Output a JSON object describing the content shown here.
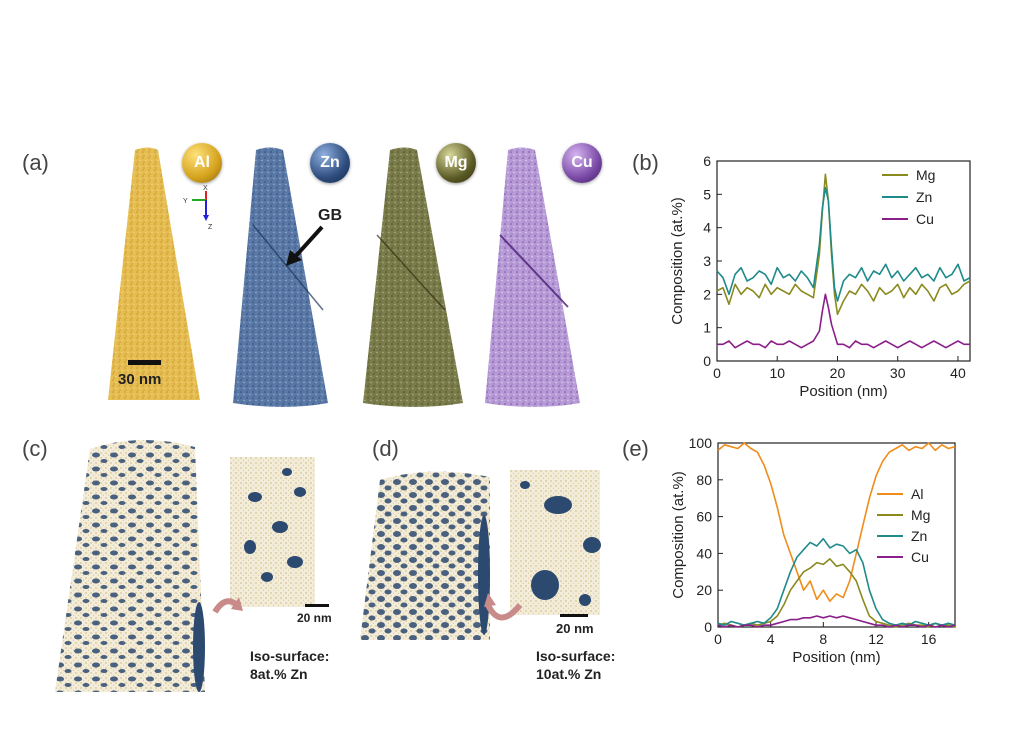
{
  "panels": {
    "a": {
      "label": "(a)",
      "elements": [
        {
          "symbol": "Al",
          "color": "#e2b43e",
          "badge": "#d4a21c"
        },
        {
          "symbol": "Zn",
          "color": "#4f6f9d",
          "badge": "#2e4d7e"
        },
        {
          "symbol": "Mg",
          "color": "#797a47",
          "badge": "#5c5c26"
        },
        {
          "symbol": "Cu",
          "color": "#a083c4",
          "badge": "#7a4aa6"
        }
      ],
      "gb_label": "GB",
      "scale_label": "30 nm",
      "axes": {
        "x": "X",
        "y": "Y",
        "z": "Z"
      }
    },
    "b": {
      "label": "(b)"
    },
    "c": {
      "label": "(c)",
      "scale_label": "20 nm",
      "iso_line1": "Iso-surface:",
      "iso_line2": "8at.% Zn"
    },
    "d": {
      "label": "(d)",
      "scale_label": "20 nm",
      "iso_line1": "Iso-surface:",
      "iso_line2": "10at.% Zn"
    },
    "e": {
      "label": "(e)"
    }
  },
  "chart_data": [
    {
      "id": "b",
      "type": "line",
      "xlabel": "Position (nm)",
      "ylabel": "Composition (at.%)",
      "xlim": [
        0,
        42
      ],
      "ylim": [
        0,
        6
      ],
      "xticks": [
        0,
        10,
        20,
        30,
        40
      ],
      "yticks": [
        0,
        1,
        2,
        3,
        4,
        5,
        6
      ],
      "legend_position": "top-right",
      "series": [
        {
          "name": "Mg",
          "color": "#8a8a1f",
          "x": [
            0,
            1,
            2,
            3,
            4,
            5,
            6,
            7,
            8,
            9,
            10,
            11,
            12,
            13,
            14,
            15,
            16,
            17,
            17.5,
            18,
            18.5,
            19,
            19.5,
            20,
            21,
            22,
            23,
            24,
            25,
            26,
            27,
            28,
            29,
            30,
            31,
            32,
            33,
            34,
            35,
            36,
            37,
            38,
            39,
            40,
            41,
            42
          ],
          "y": [
            2.1,
            2.2,
            1.7,
            2.3,
            2.0,
            2.2,
            2.1,
            1.9,
            2.3,
            2.0,
            2.2,
            2.1,
            2.0,
            2.3,
            2.1,
            2.0,
            1.9,
            3.2,
            4.5,
            5.6,
            4.8,
            3.2,
            2.0,
            1.4,
            1.8,
            2.1,
            2.0,
            2.3,
            2.1,
            1.8,
            2.2,
            2.0,
            2.1,
            2.3,
            1.9,
            2.2,
            2.0,
            2.3,
            2.1,
            1.8,
            2.2,
            2.3,
            2.0,
            2.1,
            2.3,
            2.4
          ]
        },
        {
          "name": "Zn",
          "color": "#1f8a8a",
          "x": [
            0,
            1,
            2,
            3,
            4,
            5,
            6,
            7,
            8,
            9,
            10,
            11,
            12,
            13,
            14,
            15,
            16,
            17,
            17.5,
            18,
            18.5,
            19,
            19.5,
            20,
            21,
            22,
            23,
            24,
            25,
            26,
            27,
            28,
            29,
            30,
            31,
            32,
            33,
            34,
            35,
            36,
            37,
            38,
            39,
            40,
            41,
            42
          ],
          "y": [
            2.7,
            2.5,
            2.0,
            2.6,
            2.8,
            2.4,
            2.5,
            2.7,
            2.6,
            2.3,
            2.8,
            2.5,
            2.6,
            2.4,
            2.7,
            2.5,
            2.2,
            3.5,
            4.6,
            5.2,
            4.8,
            3.4,
            2.2,
            1.8,
            2.4,
            2.6,
            2.5,
            2.8,
            2.4,
            2.7,
            2.6,
            2.9,
            2.5,
            2.7,
            2.4,
            2.6,
            2.8,
            2.5,
            2.6,
            2.4,
            2.8,
            2.5,
            2.6,
            2.9,
            2.4,
            2.5
          ]
        },
        {
          "name": "Cu",
          "color": "#8a1f8a",
          "x": [
            0,
            1,
            2,
            3,
            4,
            5,
            6,
            7,
            8,
            9,
            10,
            11,
            12,
            13,
            14,
            15,
            16,
            17,
            17.5,
            18,
            18.5,
            19,
            19.5,
            20,
            21,
            22,
            23,
            24,
            25,
            26,
            27,
            28,
            29,
            30,
            31,
            32,
            33,
            34,
            35,
            36,
            37,
            38,
            39,
            40,
            41,
            42
          ],
          "y": [
            0.5,
            0.5,
            0.6,
            0.4,
            0.5,
            0.6,
            0.5,
            0.5,
            0.4,
            0.6,
            0.5,
            0.5,
            0.6,
            0.5,
            0.4,
            0.5,
            0.6,
            0.9,
            1.5,
            2.0,
            1.6,
            1.1,
            0.8,
            0.5,
            0.5,
            0.4,
            0.6,
            0.5,
            0.5,
            0.4,
            0.5,
            0.6,
            0.5,
            0.4,
            0.5,
            0.6,
            0.5,
            0.4,
            0.5,
            0.6,
            0.5,
            0.4,
            0.5,
            0.6,
            0.5,
            0.5
          ]
        }
      ]
    },
    {
      "id": "e",
      "type": "line",
      "xlabel": "Position (nm)",
      "ylabel": "Composition (at.%)",
      "xlim": [
        0,
        18
      ],
      "ylim": [
        0,
        100
      ],
      "xticks": [
        0,
        4,
        8,
        12,
        16
      ],
      "yticks": [
        0,
        20,
        40,
        60,
        80,
        100
      ],
      "legend_position": "center-right",
      "series": [
        {
          "name": "Al",
          "color": "#f08c1a",
          "x": [
            0,
            0.5,
            1,
            1.5,
            2,
            2.5,
            3,
            3.5,
            4,
            4.5,
            5,
            5.5,
            6,
            6.5,
            7,
            7.5,
            8,
            8.5,
            9,
            9.5,
            10,
            10.5,
            11,
            11.5,
            12,
            12.5,
            13,
            13.5,
            14,
            14.5,
            15,
            15.5,
            16,
            16.5,
            17,
            17.5,
            18
          ],
          "y": [
            96,
            99,
            98,
            97,
            100,
            97,
            95,
            88,
            78,
            65,
            50,
            40,
            30,
            20,
            25,
            15,
            20,
            14,
            18,
            16,
            25,
            40,
            55,
            70,
            82,
            90,
            95,
            97,
            99,
            96,
            98,
            97,
            100,
            96,
            99,
            97,
            98
          ]
        },
        {
          "name": "Mg",
          "color": "#8a8a1f",
          "x": [
            0,
            0.5,
            1,
            1.5,
            2,
            2.5,
            3,
            3.5,
            4,
            4.5,
            5,
            5.5,
            6,
            6.5,
            7,
            7.5,
            8,
            8.5,
            9,
            9.5,
            10,
            10.5,
            11,
            11.5,
            12,
            12.5,
            13,
            13.5,
            14,
            14.5,
            15,
            15.5,
            16,
            16.5,
            17,
            17.5,
            18
          ],
          "y": [
            1,
            2,
            1,
            0,
            1,
            2,
            1,
            2,
            3,
            6,
            12,
            20,
            25,
            30,
            32,
            35,
            34,
            37,
            33,
            34,
            30,
            25,
            15,
            6,
            3,
            2,
            1,
            0,
            1,
            2,
            1,
            1,
            0,
            2,
            1,
            1,
            0
          ]
        },
        {
          "name": "Zn",
          "color": "#1f8a8a",
          "x": [
            0,
            0.5,
            1,
            1.5,
            2,
            2.5,
            3,
            3.5,
            4,
            4.5,
            5,
            5.5,
            6,
            6.5,
            7,
            7.5,
            8,
            8.5,
            9,
            9.5,
            10,
            10.5,
            11,
            11.5,
            12,
            12.5,
            13,
            13.5,
            14,
            14.5,
            15,
            15.5,
            16,
            16.5,
            17,
            17.5,
            18
          ],
          "y": [
            2,
            1,
            3,
            2,
            1,
            2,
            3,
            2,
            5,
            10,
            20,
            30,
            38,
            42,
            46,
            44,
            48,
            43,
            45,
            44,
            40,
            42,
            35,
            20,
            10,
            4,
            2,
            1,
            2,
            1,
            3,
            2,
            1,
            2,
            1,
            2,
            1
          ]
        },
        {
          "name": "Cu",
          "color": "#8a1f8a",
          "x": [
            0,
            0.5,
            1,
            1.5,
            2,
            2.5,
            3,
            3.5,
            4,
            4.5,
            5,
            5.5,
            6,
            6.5,
            7,
            7.5,
            8,
            8.5,
            9,
            9.5,
            10,
            10.5,
            11,
            11.5,
            12,
            12.5,
            13,
            13.5,
            14,
            14.5,
            15,
            15.5,
            16,
            16.5,
            17,
            17.5,
            18
          ],
          "y": [
            1,
            0,
            1,
            0,
            1,
            1,
            0,
            1,
            1,
            2,
            3,
            4,
            4,
            5,
            5,
            6,
            5,
            6,
            5,
            6,
            5,
            4,
            3,
            2,
            1,
            1,
            0,
            1,
            0,
            1,
            1,
            0,
            1,
            0,
            1,
            0,
            1
          ]
        }
      ]
    }
  ]
}
